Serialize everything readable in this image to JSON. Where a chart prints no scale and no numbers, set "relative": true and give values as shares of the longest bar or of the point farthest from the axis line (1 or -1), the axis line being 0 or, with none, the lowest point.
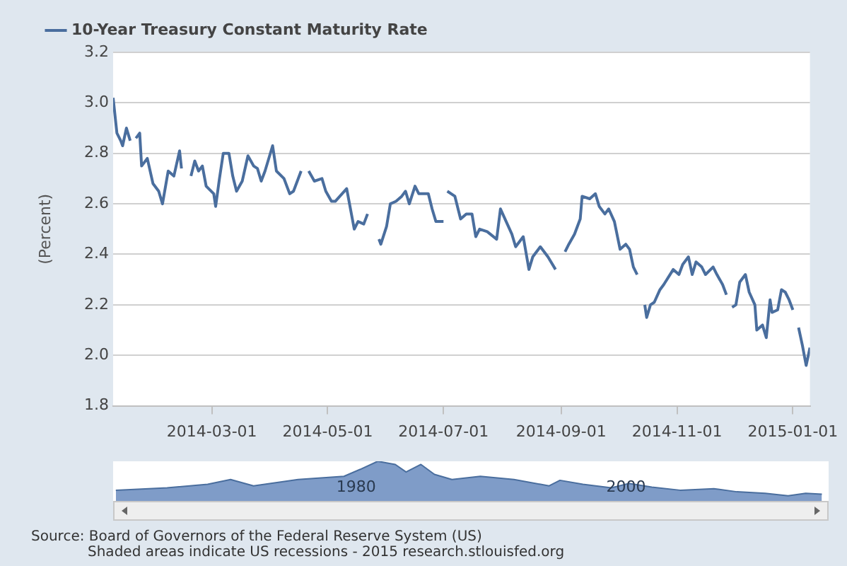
{
  "chart_data": [
    {
      "type": "line",
      "ylabel": "(Percent)",
      "legend": "top",
      "grid": "y",
      "marker": "none",
      "line_style": "solid",
      "x": [
        "2014-01-08",
        "2014-01-10",
        "2014-01-12",
        "2014-01-13",
        "2014-01-15",
        "2014-01-17",
        "2014-01-18",
        "2014-01-20",
        "2014-01-22",
        "2014-01-23",
        "2014-01-26",
        "2014-01-29",
        "2014-02-01",
        "2014-02-03",
        "2014-02-06",
        "2014-02-09",
        "2014-02-12",
        "2014-02-13",
        "2014-02-15",
        "2014-02-18",
        "2014-02-20",
        "2014-02-22",
        "2014-02-24",
        "2014-02-26",
        "2014-03-02",
        "2014-03-03",
        "2014-03-05",
        "2014-03-07",
        "2014-03-10",
        "2014-03-12",
        "2014-03-14",
        "2014-03-17",
        "2014-03-20",
        "2014-03-23",
        "2014-03-25",
        "2014-03-27",
        "2014-03-29",
        "2014-04-02",
        "2014-04-04",
        "2014-04-08",
        "2014-04-11",
        "2014-04-13",
        "2014-04-17",
        "2014-04-19",
        "2014-04-21",
        "2014-04-24",
        "2014-04-28",
        "2014-04-30",
        "2014-05-03",
        "2014-05-05",
        "2014-05-11",
        "2014-05-15",
        "2014-05-17",
        "2014-05-20",
        "2014-05-22",
        "2014-05-25",
        "2014-05-28",
        "2014-05-29",
        "2014-06-01",
        "2014-06-03",
        "2014-06-06",
        "2014-06-09",
        "2014-06-11",
        "2014-06-13",
        "2014-06-16",
        "2014-06-18",
        "2014-06-23",
        "2014-06-25",
        "2014-06-27",
        "2014-07-01",
        "2014-07-02",
        "2014-07-03",
        "2014-07-07",
        "2014-07-10",
        "2014-07-13",
        "2014-07-16",
        "2014-07-18",
        "2014-07-20",
        "2014-07-24",
        "2014-07-29",
        "2014-07-31",
        "2014-08-03",
        "2014-08-06",
        "2014-08-08",
        "2014-08-12",
        "2014-08-15",
        "2014-08-17",
        "2014-08-21",
        "2014-08-25",
        "2014-08-29",
        "2014-09-01",
        "2014-09-03",
        "2014-09-05",
        "2014-09-08",
        "2014-09-11",
        "2014-09-12",
        "2014-09-16",
        "2014-09-19",
        "2014-09-21",
        "2014-09-24",
        "2014-09-26",
        "2014-09-29",
        "2014-10-02",
        "2014-10-05",
        "2014-10-07",
        "2014-10-09",
        "2014-10-11",
        "2014-10-13",
        "2014-10-15",
        "2014-10-16",
        "2014-10-18",
        "2014-10-20",
        "2014-10-23",
        "2014-10-25",
        "2014-10-30",
        "2014-11-02",
        "2014-11-04",
        "2014-11-07",
        "2014-11-09",
        "2014-11-11",
        "2014-11-14",
        "2014-11-16",
        "2014-11-20",
        "2014-11-22",
        "2014-11-25",
        "2014-11-27",
        "2014-11-28",
        "2014-11-30",
        "2014-12-02",
        "2014-12-04",
        "2014-12-07",
        "2014-12-09",
        "2014-12-12",
        "2014-12-13",
        "2014-12-16",
        "2014-12-18",
        "2014-12-20",
        "2014-12-21",
        "2014-12-24",
        "2014-12-26",
        "2014-12-28",
        "2014-12-30",
        "2015-01-01",
        "2015-01-02",
        "2015-01-04",
        "2015-01-06",
        "2015-01-08",
        "2015-01-10"
      ],
      "series": [
        {
          "name": "10-Year Treasury Constant Maturity Rate",
          "color": "#4a6e9e",
          "values": [
            3.02,
            2.88,
            2.85,
            2.83,
            2.9,
            2.85,
            null,
            2.86,
            2.88,
            2.75,
            2.78,
            2.68,
            2.65,
            2.6,
            2.73,
            2.71,
            2.81,
            2.74,
            null,
            2.71,
            2.77,
            2.73,
            2.75,
            2.67,
            2.64,
            2.59,
            2.7,
            2.8,
            2.8,
            2.71,
            2.65,
            2.69,
            2.79,
            2.75,
            2.74,
            2.69,
            2.73,
            2.83,
            2.73,
            2.7,
            2.64,
            2.65,
            2.73,
            null,
            2.73,
            2.69,
            2.7,
            2.65,
            2.61,
            2.61,
            2.66,
            2.5,
            2.53,
            2.52,
            2.56,
            null,
            2.46,
            2.44,
            2.51,
            2.6,
            2.61,
            2.63,
            2.65,
            2.6,
            2.67,
            2.64,
            2.64,
            2.58,
            2.53,
            2.53,
            null,
            2.65,
            2.63,
            2.54,
            2.56,
            2.56,
            2.47,
            2.5,
            2.49,
            2.46,
            2.58,
            2.53,
            2.48,
            2.43,
            2.47,
            2.34,
            2.39,
            2.43,
            2.39,
            2.34,
            null,
            2.41,
            2.44,
            2.48,
            2.54,
            2.63,
            2.62,
            2.64,
            2.59,
            2.56,
            2.58,
            2.53,
            2.42,
            2.44,
            2.42,
            2.35,
            2.32,
            null,
            2.2,
            2.15,
            2.2,
            2.21,
            2.26,
            2.28,
            2.34,
            2.32,
            2.36,
            2.39,
            2.32,
            2.37,
            2.35,
            2.32,
            2.35,
            2.32,
            2.28,
            2.24,
            null,
            2.19,
            2.2,
            2.29,
            2.32,
            2.25,
            2.2,
            2.1,
            2.12,
            2.07,
            2.22,
            2.17,
            2.18,
            2.26,
            2.25,
            2.22,
            2.18,
            null,
            2.11,
            2.04,
            1.96,
            2.03
          ]
        }
      ],
      "xlim": [
        "2014-01-08",
        "2015-01-10"
      ],
      "xticks": [
        "2014-03-01",
        "2014-05-01",
        "2014-07-01",
        "2014-09-01",
        "2014-11-01",
        "2015-01-01"
      ],
      "ylim": [
        1.8,
        3.2
      ],
      "yticks": [
        1.8,
        {
          "value": 2,
          "label": "2.0"
        },
        2.2,
        2.4,
        2.6,
        2.8,
        {
          "value": 3,
          "label": "3.0"
        },
        3.2
      ],
      "annotations": [
        "Source: Board of Governors of the Federal Reserve System (US)",
        "Shaded areas indicate US recessions - 2015 research.stlouisfed.org"
      ]
    },
    {
      "type": "area",
      "relative": true,
      "tick_labels": "x",
      "legend": false,
      "grid": false,
      "x": [
        1962.2,
        1966.0,
        1969.0,
        1970.7,
        1972.4,
        1975.7,
        1979.1,
        1980.4,
        1981.6,
        1982.9,
        1983.7,
        1984.8,
        1985.8,
        1987.1,
        1989.2,
        1991.7,
        1994.3,
        1995.1,
        1996.8,
        1998.9,
        2000.2,
        2001.9,
        2004.0,
        2006.5,
        2008.2,
        2010.3,
        2012.0,
        2013.3,
        2014.5
      ],
      "series": [
        {
          "color": "#7f9cc8",
          "values": [
            0.27,
            0.33,
            0.42,
            0.54,
            0.38,
            0.54,
            0.62,
            0.81,
            1.0,
            0.92,
            0.73,
            0.92,
            0.67,
            0.54,
            0.62,
            0.54,
            0.38,
            0.52,
            0.42,
            0.33,
            0.44,
            0.35,
            0.27,
            0.31,
            0.23,
            0.19,
            0.13,
            0.19,
            0.17
          ]
        }
      ],
      "xlim": [
        1962,
        2015
      ],
      "xticks": [
        1980,
        2000
      ]
    }
  ]
}
